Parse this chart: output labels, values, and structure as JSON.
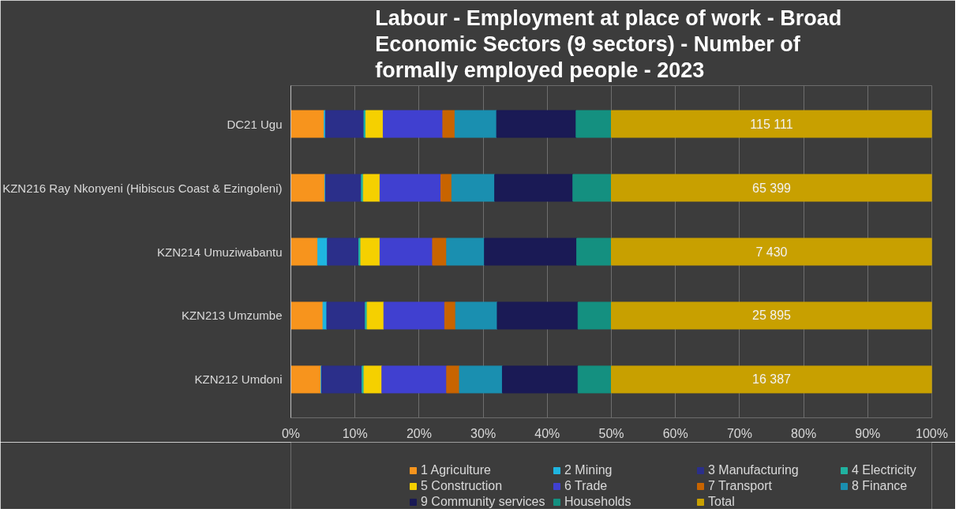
{
  "chart_data": {
    "type": "bar",
    "orientation": "horizontal",
    "stacked": true,
    "title": "Labour - Employment at place of work  - Broad Economic Sectors (9 sectors) - Number of formally employed people - 2023",
    "categories": [
      "DC21 Ugu",
      "KZN216 Ray Nkonyeni (Hibiscus Coast & Ezingoleni)",
      "KZN214 Umuziwabantu",
      "KZN213 Umzumbe",
      "KZN212 Umdoni"
    ],
    "xlim": [
      0,
      100
    ],
    "xticks": [
      {
        "value": 0,
        "label": "0%"
      },
      {
        "value": 10,
        "label": "10%"
      },
      {
        "value": 20,
        "label": "20%"
      },
      {
        "value": 30,
        "label": "30%"
      },
      {
        "value": 40,
        "label": "40%"
      },
      {
        "value": 50,
        "label": "50%"
      },
      {
        "value": 60,
        "label": "60%"
      },
      {
        "value": 70,
        "label": "70%"
      },
      {
        "value": 80,
        "label": "80%"
      },
      {
        "value": 90,
        "label": "90%"
      },
      {
        "value": 100,
        "label": "100%"
      }
    ],
    "grid": "x",
    "legend": "bottom",
    "annotations": [
      "115 111",
      "65 399",
      "7 430",
      "25 895",
      "16 387"
    ],
    "series": [
      {
        "name": "1 Agriculture",
        "color": "#f7941d",
        "values": [
          5.2,
          5.3,
          4.2,
          5.0,
          4.7
        ]
      },
      {
        "name": "2 Mining",
        "color": "#1fb5e0",
        "values": [
          0.2,
          0.1,
          1.5,
          0.6,
          0.1
        ]
      },
      {
        "name": "3 Manufacturing",
        "color": "#2b2f8a",
        "values": [
          6.0,
          5.6,
          4.9,
          6.0,
          6.3
        ]
      },
      {
        "name": "4 Electricity",
        "color": "#20b2a0",
        "values": [
          0.3,
          0.3,
          0.3,
          0.3,
          0.3
        ]
      },
      {
        "name": "5 Construction",
        "color": "#f5d000",
        "values": [
          2.7,
          2.6,
          3.0,
          2.6,
          2.8
        ]
      },
      {
        "name": "6 Trade",
        "color": "#4040d0",
        "values": [
          9.3,
          9.5,
          8.2,
          9.5,
          10.1
        ]
      },
      {
        "name": "7 Transport",
        "color": "#c86400",
        "values": [
          1.9,
          1.7,
          2.2,
          1.7,
          2.0
        ]
      },
      {
        "name": "8 Finance",
        "color": "#1a8fb0",
        "values": [
          6.5,
          6.7,
          5.9,
          6.5,
          6.7
        ]
      },
      {
        "name": "9 Community services",
        "color": "#1a1a55",
        "values": [
          12.4,
          12.2,
          14.4,
          12.6,
          11.8
        ]
      },
      {
        "name": "Households",
        "color": "#149080",
        "values": [
          5.5,
          6.0,
          5.4,
          5.2,
          5.2
        ]
      },
      {
        "name": "Total",
        "color": "#c8a000",
        "values": [
          50,
          50,
          50,
          50,
          50
        ]
      }
    ]
  }
}
